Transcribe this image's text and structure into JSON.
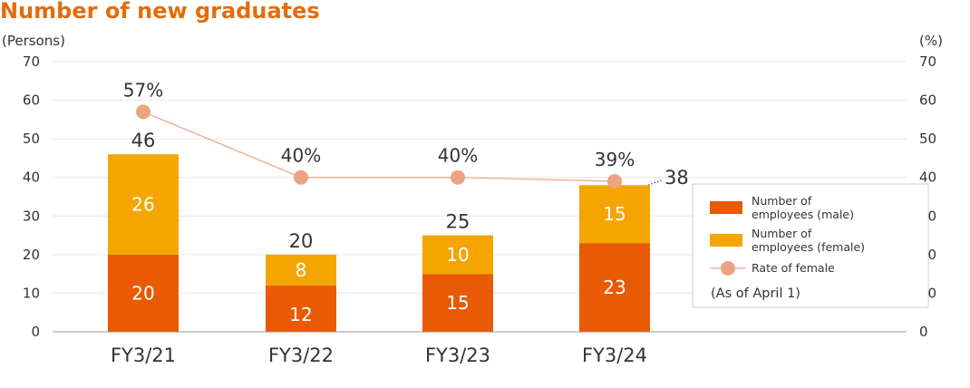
{
  "title": "Number of new graduates",
  "colors": {
    "title": "#e36c0a",
    "male": "#e85a04",
    "female": "#f5a500",
    "rate": "#eba382",
    "grid": "#e6e6e6",
    "axis": "#999999"
  },
  "legend": {
    "male": [
      "Number of",
      "employees (male)"
    ],
    "female": [
      "Number of",
      "employees (female)"
    ],
    "rate": "Rate of female",
    "note": "(As of April 1)"
  },
  "chart_data": {
    "type": "bar",
    "stacked": true,
    "title": "Number of new graduates",
    "ylabel_left": "(Persons)",
    "ylabel_right": "(%)",
    "ylim": [
      0,
      70
    ],
    "y_ticks": [
      0,
      10,
      20,
      30,
      40,
      50,
      60,
      70
    ],
    "grid": true,
    "legend_position": "right",
    "categories": [
      "FY3/21",
      "FY3/22",
      "FY3/23",
      "FY3/24"
    ],
    "series": [
      {
        "name": "Number of employees (male)",
        "values": [
          20,
          12,
          15,
          23
        ]
      },
      {
        "name": "Number of employees (female)",
        "values": [
          26,
          8,
          10,
          15
        ]
      }
    ],
    "totals": [
      46,
      20,
      25,
      38
    ],
    "line_series": {
      "name": "Rate of female",
      "values": [
        57,
        40,
        40,
        39
      ],
      "labels": [
        "57%",
        "40%",
        "40%",
        "39%"
      ],
      "axis": "right"
    }
  }
}
